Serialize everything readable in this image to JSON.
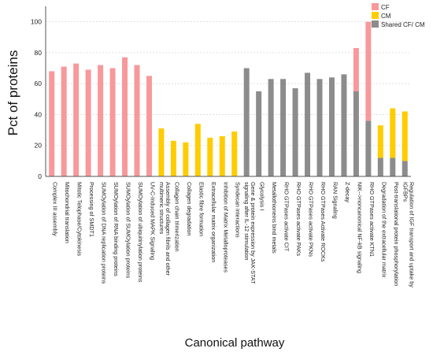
{
  "chart_data": {
    "type": "bar",
    "stacked": true,
    "xlabel": "Canonical pathway",
    "ylabel": "Pct of proteins",
    "ylim": [
      0,
      110
    ],
    "yticks": [
      0,
      20,
      40,
      60,
      80,
      100
    ],
    "grid": "horizontal",
    "legend_position": "top-right",
    "categories": [
      "Complex III assembly",
      "Mitochondrial translation",
      "Mitotic Telophase/Cytokinesis",
      "Processing of SMDT1",
      "SUMOylation of DNA replication proteins",
      "SUMOylation of RNA binding proteins",
      "SUMOylation of SUMOylation proteins",
      "SUMOylation of ubiquitinylation proteins",
      "UV-C-Induced MAPK Signaling",
      "Assembly of collagen fibrils and other multimeric structures",
      "Collagen chain trimerization",
      "Collagen degradation",
      "Elastic fibre formation",
      "Extracellular matrix organization",
      "Inhibition of Matrix Metalloproteases",
      "Syndecan interactions",
      "Gene & protein expression by JAK-STAT signaling after IL-12 stimulation",
      "Glycolysis I",
      "Metallothioneins bind metals",
      "RHO GTPases activate CIT",
      "RHO GTPases activate PAKs",
      "RHO GTPases activate PKNs",
      "RHO GTPases Activate ROCKs",
      "RAN Signaling",
      "Z-decay",
      "NIK-->noncanonical NF-kB signaling",
      "RHO GTPases activate KTN1",
      "Degradation of the extracellular matrix",
      "Post-translational protein phosphorylation",
      "Regulation of IGF transport and uptake by IGFBPs"
    ],
    "series": [
      {
        "name": "Shared CF/ CM",
        "color": "#8c8c8c",
        "values": [
          0,
          0,
          0,
          0,
          0,
          0,
          0,
          0,
          0,
          0,
          0,
          0,
          0,
          0,
          0,
          0,
          70,
          55,
          63,
          63,
          57,
          67,
          63,
          64,
          66,
          55,
          36,
          12,
          12,
          10
        ]
      },
      {
        "name": "CF",
        "color": "#f7999b",
        "values": [
          68,
          71,
          73,
          69,
          72,
          70,
          77,
          72,
          65,
          0,
          0,
          0,
          0,
          0,
          0,
          0,
          0,
          0,
          0,
          0,
          0,
          0,
          0,
          0,
          0,
          28,
          64,
          0,
          0,
          0
        ]
      },
      {
        "name": "CM",
        "color": "#ffcc00",
        "values": [
          0,
          0,
          0,
          0,
          0,
          0,
          0,
          0,
          0,
          31,
          23,
          22,
          34,
          25,
          26,
          29,
          0,
          0,
          0,
          0,
          0,
          0,
          0,
          0,
          0,
          0,
          0,
          21,
          32,
          32
        ]
      }
    ]
  }
}
